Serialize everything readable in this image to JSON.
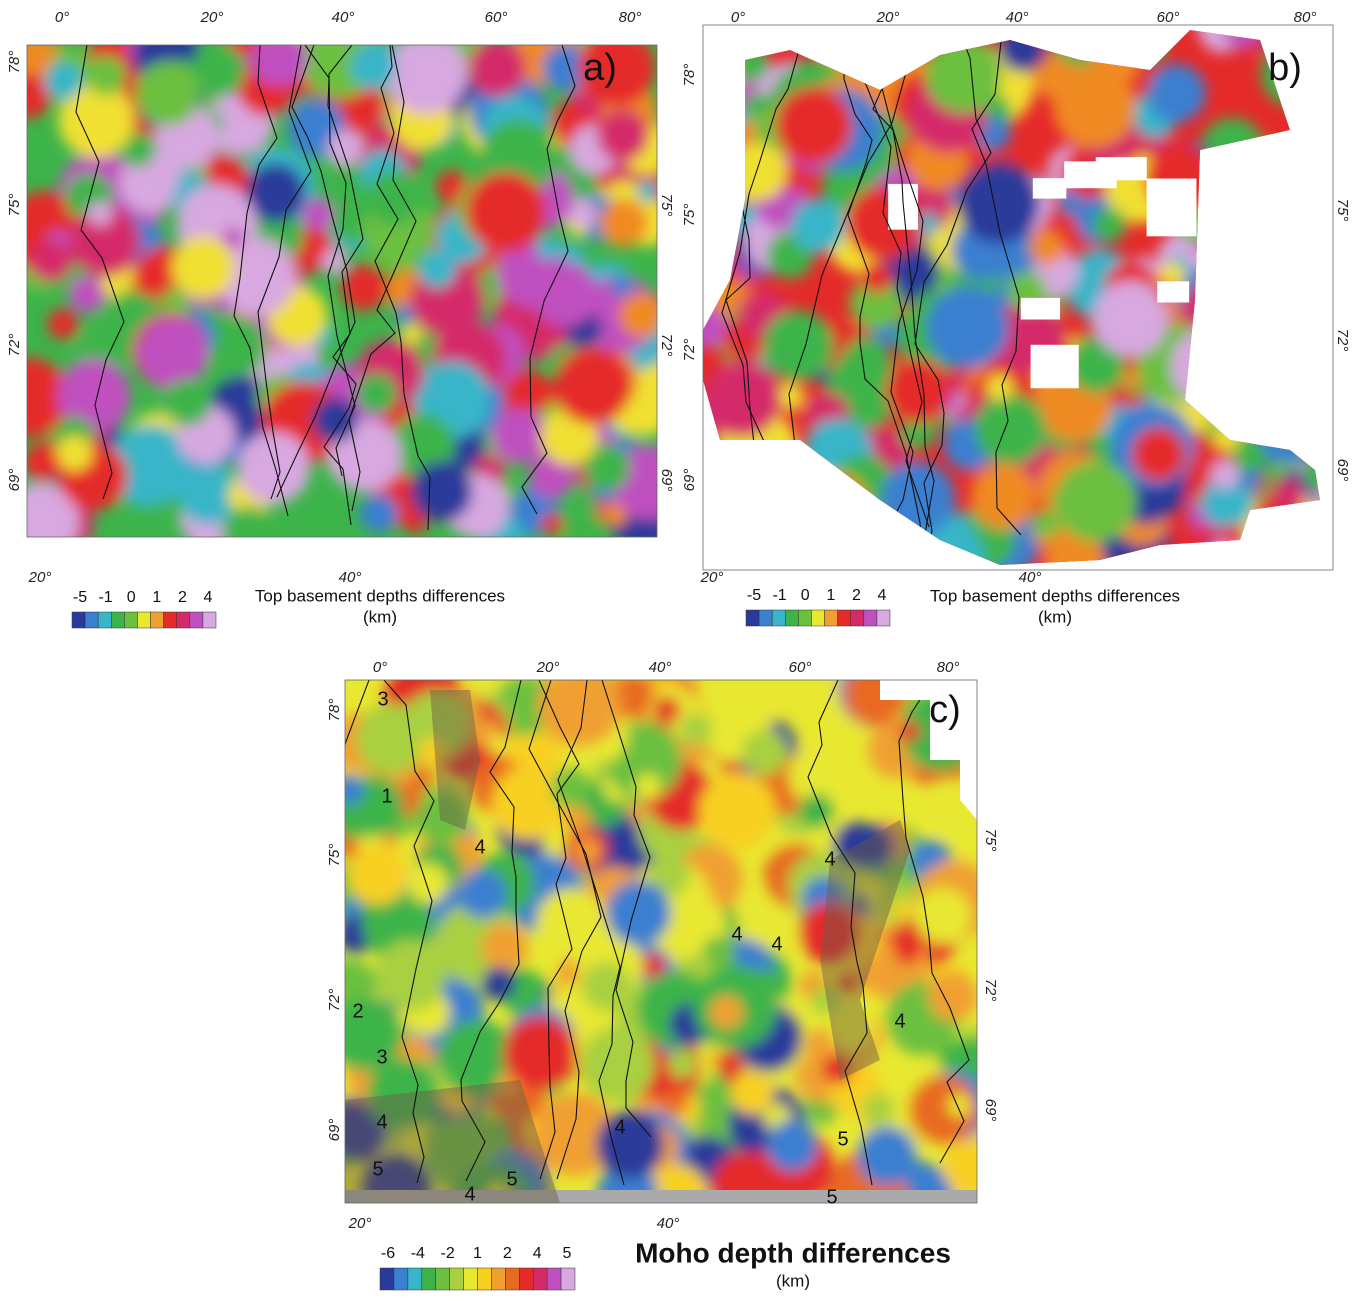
{
  "panels": [
    {
      "label": "a)",
      "lon_top": [
        "0°",
        "20°",
        "40°",
        "60°",
        "80°"
      ],
      "lat_left": [
        "78°",
        "75°",
        "72°",
        "69°"
      ],
      "lat_right": [
        "75°",
        "72°",
        "69°"
      ],
      "lon_bottom": [
        "20°",
        "40°"
      ],
      "colorbar": {
        "ticks": [
          "-5",
          "-1",
          "0",
          "1",
          "2",
          "4"
        ],
        "title": "Top basement depths differences",
        "unit": "(km)"
      }
    },
    {
      "label": "b)",
      "lon_top": [
        "0°",
        "20°",
        "40°",
        "60°",
        "80°"
      ],
      "lat_left": [
        "78°",
        "75°",
        "72°",
        "69°"
      ],
      "lat_right": [
        "75°",
        "72°",
        "69°"
      ],
      "lon_bottom": [
        "20°",
        "40°"
      ],
      "colorbar": {
        "ticks": [
          "-5",
          "-1",
          "0",
          "1",
          "2",
          "4"
        ],
        "title": "Top basement depths differences",
        "unit": "(km)"
      }
    },
    {
      "label": "c)",
      "lon_top": [
        "0°",
        "20°",
        "40°",
        "60°",
        "80°"
      ],
      "lat_left": [
        "78°",
        "75°",
        "72°",
        "69°"
      ],
      "lat_right": [
        "75°",
        "72°",
        "69°"
      ],
      "lon_bottom": [
        "20°",
        "40°"
      ],
      "colorbar": {
        "ticks": [
          "-6",
          "-4",
          "-2",
          "1",
          "2",
          "4",
          "5"
        ],
        "title": "Moho depth differences",
        "unit": "(km)"
      },
      "contour_labels": [
        "3",
        "1",
        "4",
        "4",
        "4",
        "2",
        "3",
        "4",
        "4",
        "5",
        "5",
        "4",
        "5",
        "5",
        "4",
        "4"
      ]
    }
  ]
}
